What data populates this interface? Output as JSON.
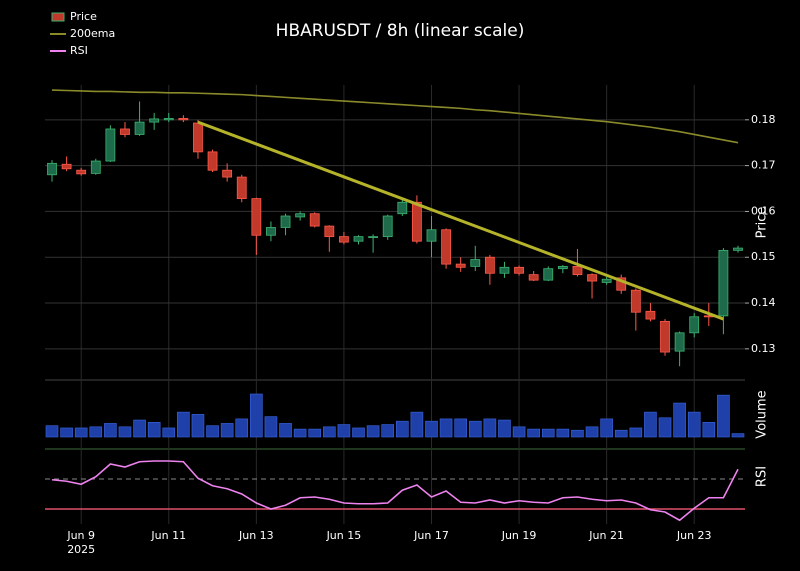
{
  "chart_data": {
    "type": "candlestick",
    "title": "HBARUSDT / 8h (linear scale)",
    "categories": [
      null,
      null,
      "Jun 9",
      null,
      null,
      null,
      null,
      null,
      "Jun 11",
      null,
      null,
      null,
      null,
      null,
      "Jun 13",
      null,
      null,
      null,
      null,
      null,
      "Jun 15",
      null,
      null,
      null,
      null,
      null,
      "Jun 17",
      null,
      null,
      null,
      null,
      null,
      "Jun 19",
      null,
      null,
      null,
      null,
      null,
      "Jun 21",
      null,
      null,
      null,
      null,
      null,
      "Jun 23",
      null,
      null,
      null
    ],
    "year_label": "2025",
    "ylabel": "Price",
    "ylim": [
      0.1232,
      0.1876
    ],
    "yticks": [
      0.13,
      0.14,
      0.15,
      0.16,
      0.17,
      0.18
    ],
    "grid": true,
    "legend": "upper left",
    "series": [
      {
        "name": "Price",
        "type": "candlestick",
        "up_color": "#1d6b4a",
        "up_edge": "#3cb371",
        "down_color": "#c0392b",
        "down_edge": "#ff5a4a",
        "open": [
          0.168,
          0.1703,
          0.169,
          0.1683,
          0.171,
          0.178,
          0.1768,
          0.1795,
          0.18,
          0.1803,
          0.1793,
          0.173,
          0.169,
          0.1675,
          0.1628,
          0.1548,
          0.1565,
          0.1588,
          0.1595,
          0.1568,
          0.1545,
          0.1535,
          0.1543,
          0.1545,
          0.1595,
          0.162,
          0.1535,
          0.156,
          0.1485,
          0.148,
          0.15,
          0.1465,
          0.1478,
          0.1462,
          0.145,
          0.1475,
          0.148,
          0.1462,
          0.1445,
          0.1455,
          0.1428,
          0.1382,
          0.136,
          0.1295,
          0.1335,
          0.1372,
          0.1372,
          0.1515
        ],
        "high": [
          0.1712,
          0.172,
          0.1695,
          0.1715,
          0.1788,
          0.1795,
          0.184,
          0.1815,
          0.1815,
          0.181,
          0.18,
          0.1735,
          0.1705,
          0.168,
          0.163,
          0.1578,
          0.1595,
          0.16,
          0.1598,
          0.157,
          0.1555,
          0.1548,
          0.155,
          0.1593,
          0.163,
          0.1635,
          0.159,
          0.1563,
          0.15,
          0.1525,
          0.1505,
          0.149,
          0.1482,
          0.147,
          0.148,
          0.1483,
          0.1518,
          0.1465,
          0.146,
          0.1462,
          0.1432,
          0.14,
          0.1365,
          0.1338,
          0.1378,
          0.14,
          0.152,
          0.1525
        ],
        "low": [
          0.1665,
          0.1688,
          0.1678,
          0.168,
          0.1708,
          0.1762,
          0.1765,
          0.1778,
          0.1795,
          0.1795,
          0.1715,
          0.1686,
          0.1665,
          0.162,
          0.1505,
          0.1535,
          0.1548,
          0.158,
          0.1565,
          0.1512,
          0.1528,
          0.1528,
          0.151,
          0.1538,
          0.159,
          0.153,
          0.15,
          0.1475,
          0.1468,
          0.147,
          0.144,
          0.1455,
          0.146,
          0.1448,
          0.1448,
          0.1465,
          0.1458,
          0.141,
          0.144,
          0.142,
          0.134,
          0.136,
          0.1285,
          0.1262,
          0.1325,
          0.135,
          0.1332,
          0.151
        ],
        "close": [
          0.1705,
          0.1693,
          0.1682,
          0.171,
          0.178,
          0.1768,
          0.1795,
          0.1802,
          0.1803,
          0.18,
          0.173,
          0.169,
          0.1675,
          0.1628,
          0.1548,
          0.1565,
          0.159,
          0.1595,
          0.1568,
          0.1545,
          0.1533,
          0.1545,
          0.1545,
          0.159,
          0.162,
          0.1535,
          0.156,
          0.1485,
          0.1478,
          0.1495,
          0.1465,
          0.1478,
          0.1465,
          0.145,
          0.1475,
          0.148,
          0.1462,
          0.1448,
          0.1452,
          0.1428,
          0.138,
          0.1365,
          0.1293,
          0.1335,
          0.137,
          0.137,
          0.1515,
          0.152
        ]
      },
      {
        "name": "200ema",
        "type": "line",
        "color": "#8a8a2a",
        "values": [
          0.1865,
          0.1864,
          0.1863,
          0.1862,
          0.1862,
          0.1861,
          0.186,
          0.186,
          0.1859,
          0.1859,
          0.1858,
          0.1857,
          0.1856,
          0.1855,
          0.1853,
          0.1851,
          0.1849,
          0.1847,
          0.1845,
          0.1843,
          0.1841,
          0.1839,
          0.1837,
          0.1835,
          0.1833,
          0.1831,
          0.1829,
          0.1827,
          0.1825,
          0.1822,
          0.182,
          0.1817,
          0.1814,
          0.1811,
          0.1808,
          0.1805,
          0.1802,
          0.1799,
          0.1796,
          0.1792,
          0.1788,
          0.1784,
          0.1779,
          0.1774,
          0.1768,
          0.1762,
          0.1756,
          0.175
        ]
      }
    ],
    "trendline": {
      "color": "#b5b32a",
      "from_index": 10,
      "from_value": 0.1795,
      "to_index": 46,
      "to_value": 0.1365
    },
    "volume": {
      "ylabel": "Volume",
      "color": "#1f40a8",
      "edge": "#3a66e0",
      "values": [
        10,
        8,
        8,
        9,
        12,
        9,
        15,
        13,
        8,
        22,
        20,
        10,
        12,
        16,
        38,
        18,
        12,
        7,
        7,
        9,
        11,
        8,
        10,
        11,
        14,
        22,
        14,
        16,
        16,
        14,
        16,
        15,
        9,
        7,
        7,
        7,
        6,
        9,
        16,
        6,
        8,
        22,
        17,
        30,
        22,
        13,
        37,
        3
      ]
    },
    "rsi": {
      "name": "RSI",
      "ylabel": "RSI",
      "color": "#ee82ee",
      "ylim": [
        10,
        110
      ],
      "upper": 70,
      "lower": 30,
      "upper_color": "#888888",
      "lower_color": "#e0506a",
      "values": [
        69,
        67,
        63,
        73,
        90,
        86,
        93,
        94,
        94,
        93,
        71,
        61,
        57,
        50,
        38,
        30,
        35,
        45,
        46,
        43,
        38,
        37,
        37,
        38,
        55,
        62,
        46,
        54,
        39,
        38,
        42,
        38,
        41,
        39,
        38,
        45,
        46,
        43,
        41,
        42,
        38,
        29,
        26,
        15,
        31,
        45,
        45,
        83
      ]
    }
  }
}
